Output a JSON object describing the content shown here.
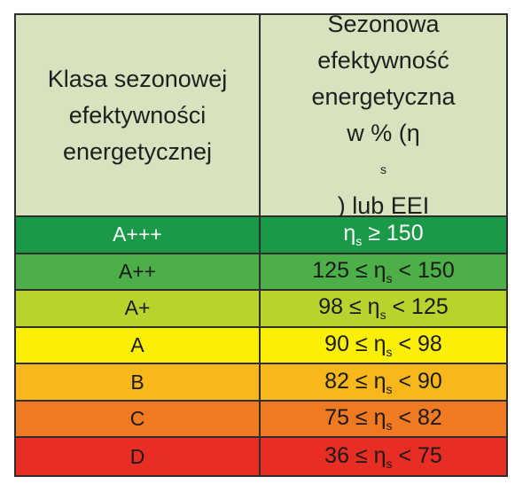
{
  "table": {
    "header": {
      "col1_lines": [
        "Klasa sezonowej",
        "efektywności",
        "energetycznej"
      ],
      "col2_lines": [
        "Sezonowa",
        "efektywność",
        "energetyczna"
      ],
      "col2_last": {
        "pre": "w % (η",
        "sub": "s",
        "post": ") lub EEI"
      }
    },
    "rows": [
      {
        "class": "A+++",
        "pre": "η",
        "sub": "s",
        "post": " ≥ 150",
        "bg": "#1a9a48",
        "fg": "#ffffff"
      },
      {
        "class": "A++",
        "pre": "125 ≤ η",
        "sub": "s",
        "post": " < 150",
        "bg": "#4caf48",
        "fg": "#1a1a1a"
      },
      {
        "class": "A+",
        "pre": "98 ≤ η",
        "sub": "s",
        "post": " < 125",
        "bg": "#b9d22e",
        "fg": "#1a1a1a"
      },
      {
        "class": "A",
        "pre": "90 ≤ η",
        "sub": "s",
        "post": " < 98",
        "bg": "#fbf003",
        "fg": "#1a1a1a"
      },
      {
        "class": "B",
        "pre": "82 ≤ η",
        "sub": "s",
        "post": " < 90",
        "bg": "#f8b81c",
        "fg": "#1a1a1a"
      },
      {
        "class": "C",
        "pre": "75 ≤ η",
        "sub": "s",
        "post": " < 82",
        "bg": "#f07a22",
        "fg": "#1a1a1a"
      },
      {
        "class": "D",
        "pre": "36 ≤ η",
        "sub": "s",
        "post": " < 75",
        "bg": "#e72d24",
        "fg": "#1a1a1a"
      }
    ]
  }
}
